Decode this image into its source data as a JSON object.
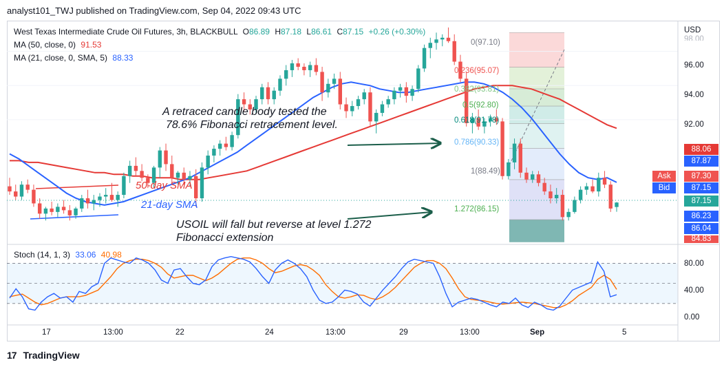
{
  "header": {
    "text": "analyst101_TWJ published on TradingView.com, Sep 04, 2022 09:43 UTC"
  },
  "legend": {
    "symbol": "West Texas Intermediate Crude Oil Futures, 3h, BLACKBULL",
    "o_label": "O",
    "o": "86.89",
    "h_label": "H",
    "h": "87.18",
    "l_label": "L",
    "l": "86.61",
    "c_label": "C",
    "c": "87.15",
    "chg": "+0.26 (+0.30%)",
    "ma50_label": "MA (50, close, 0)",
    "ma50_val": "91.53",
    "ma21_label": "MA (21, close, 0, SMA, 5)",
    "ma21_val": "88.33",
    "stoch_label": "Stoch (14, 1, 3)",
    "stoch_k": "33.06",
    "stoch_d": "40.98"
  },
  "annotations": {
    "a1_line1": "A retraced candle body tested the",
    "a1_line2": "78.6% Fibonacci retracement level.",
    "a2_line1": "USOIL will fall but reverse at level 1.272",
    "a2_line2": "Fibonacci extension",
    "sma50": "50-day SMA",
    "sma21": "21-day SMA"
  },
  "fib_labels": [
    "0(97.10)",
    "0.236(95.07)",
    "0.382(93.81)",
    "0.5(92.80)",
    "0.618(91.78)",
    "0.786(90.33)",
    "1(88.49)",
    "1.272(86.15)"
  ],
  "price_axis": {
    "currency": "USD",
    "ticks": [
      "96.00",
      "94.00",
      "92.00",
      "88.06",
      "87.87",
      "86.23",
      "86.04"
    ],
    "top_cut": "98.00",
    "bot_cut": "84.83"
  },
  "tags": {
    "ask_label": "Ask",
    "ask": "87.30",
    "bid_label": "Bid",
    "bid": "87.15",
    "last": "87.15"
  },
  "stoch_axis": [
    "80.00",
    "40.00",
    "0.00"
  ],
  "time_axis": [
    "17",
    "13:00",
    "22",
    "24",
    "13:00",
    "29",
    "13:00",
    "Sep",
    "5"
  ],
  "footer": {
    "brand": "TradingView"
  },
  "colors": {
    "up": "#26a69a",
    "down": "#ef5350",
    "ma50": "#e53935",
    "ma21": "#2962ff",
    "stoch_k": "#2962ff",
    "stoch_d": "#ff6d00"
  },
  "chart_data": {
    "type": "candlestick",
    "title": "West Texas Intermediate Crude Oil Futures, 3h, BLACKBULL",
    "ylim": [
      84.7,
      97.8
    ],
    "candles": [
      [
        88.1,
        88.6,
        87.6,
        87.8
      ],
      [
        87.8,
        88.2,
        87.3,
        87.5
      ],
      [
        87.5,
        88.4,
        87.3,
        88.2
      ],
      [
        88.2,
        88.5,
        87.7,
        87.9
      ],
      [
        87.9,
        88.2,
        86.9,
        87.1
      ],
      [
        87.1,
        87.4,
        86.2,
        86.5
      ],
      [
        86.5,
        86.9,
        86.1,
        86.8
      ],
      [
        86.8,
        87.2,
        86.4,
        86.6
      ],
      [
        86.6,
        87.1,
        86.3,
        86.9
      ],
      [
        86.9,
        87.3,
        86.5,
        86.7
      ],
      [
        86.7,
        87.0,
        86.1,
        86.4
      ],
      [
        86.4,
        86.9,
        86.2,
        86.8
      ],
      [
        86.8,
        87.6,
        86.6,
        87.4
      ],
      [
        87.4,
        87.9,
        86.8,
        87.1
      ],
      [
        87.1,
        87.6,
        86.7,
        87.3
      ],
      [
        87.3,
        87.7,
        86.9,
        87.5
      ],
      [
        87.5,
        88.0,
        87.1,
        87.6
      ],
      [
        87.6,
        88.3,
        87.2,
        87.3
      ],
      [
        87.3,
        87.8,
        86.9,
        87.6
      ],
      [
        87.6,
        88.9,
        87.4,
        88.7
      ],
      [
        88.7,
        89.6,
        88.3,
        89.3
      ],
      [
        89.3,
        89.8,
        88.7,
        89.0
      ],
      [
        89.0,
        89.4,
        88.4,
        88.6
      ],
      [
        88.6,
        88.8,
        88.0,
        88.3
      ],
      [
        88.3,
        89.3,
        88.0,
        89.2
      ],
      [
        89.2,
        90.4,
        88.6,
        90.2
      ],
      [
        90.2,
        90.6,
        89.0,
        89.4
      ],
      [
        89.4,
        89.9,
        88.3,
        88.6
      ],
      [
        88.6,
        89.0,
        88.2,
        88.9
      ],
      [
        88.9,
        89.2,
        88.2,
        88.5
      ],
      [
        88.5,
        89.0,
        88.1,
        88.7
      ],
      [
        88.7,
        89.1,
        86.9,
        87.4
      ],
      [
        87.4,
        89.5,
        87.2,
        89.2
      ],
      [
        89.2,
        90.2,
        88.8,
        89.9
      ],
      [
        89.9,
        90.5,
        89.5,
        90.3
      ],
      [
        90.3,
        90.8,
        89.9,
        90.6
      ],
      [
        90.6,
        91.0,
        90.2,
        90.4
      ],
      [
        90.4,
        91.3,
        90.2,
        91.1
      ],
      [
        91.1,
        93.5,
        90.9,
        93.2
      ],
      [
        93.2,
        93.6,
        92.5,
        92.9
      ],
      [
        92.9,
        93.2,
        92.3,
        92.6
      ],
      [
        92.6,
        93.4,
        92.4,
        93.2
      ],
      [
        93.2,
        94.1,
        92.9,
        93.9
      ],
      [
        93.9,
        94.2,
        92.9,
        93.2
      ],
      [
        93.2,
        93.9,
        92.9,
        93.7
      ],
      [
        93.7,
        94.6,
        93.4,
        94.4
      ],
      [
        94.4,
        95.2,
        94.0,
        94.9
      ],
      [
        94.9,
        95.5,
        94.5,
        95.3
      ],
      [
        95.3,
        95.6,
        94.9,
        95.1
      ],
      [
        95.1,
        95.3,
        94.6,
        94.9
      ],
      [
        94.9,
        95.4,
        94.5,
        95.2
      ],
      [
        95.2,
        95.6,
        94.6,
        94.8
      ],
      [
        94.8,
        95.1,
        93.1,
        93.6
      ],
      [
        93.6,
        94.4,
        93.3,
        94.1
      ],
      [
        94.1,
        94.7,
        93.8,
        94.4
      ],
      [
        94.4,
        94.8,
        92.6,
        92.9
      ],
      [
        92.9,
        93.3,
        92.1,
        92.5
      ],
      [
        92.5,
        93.1,
        92.2,
        92.8
      ],
      [
        92.8,
        93.4,
        92.6,
        93.2
      ],
      [
        93.2,
        93.8,
        92.9,
        93.6
      ],
      [
        93.6,
        93.9,
        91.6,
        91.9
      ],
      [
        91.9,
        92.6,
        91.2,
        92.4
      ],
      [
        92.4,
        93.1,
        92.2,
        92.9
      ],
      [
        92.9,
        93.4,
        92.7,
        93.2
      ],
      [
        93.2,
        93.9,
        92.9,
        93.7
      ],
      [
        93.7,
        94.1,
        93.3,
        93.9
      ],
      [
        93.9,
        94.2,
        93.0,
        93.4
      ],
      [
        93.4,
        94.0,
        93.1,
        93.8
      ],
      [
        93.8,
        95.2,
        93.6,
        95.0
      ],
      [
        95.0,
        96.4,
        94.8,
        96.2
      ],
      [
        96.2,
        96.8,
        95.6,
        96.5
      ],
      [
        96.5,
        97.1,
        96.1,
        96.7
      ],
      [
        96.7,
        97.0,
        96.3,
        96.8
      ],
      [
        96.8,
        97.4,
        96.5,
        96.6
      ],
      [
        96.6,
        97.0,
        95.2,
        95.4
      ],
      [
        95.4,
        95.8,
        94.2,
        94.4
      ],
      [
        94.4,
        94.8,
        91.6,
        91.8
      ],
      [
        91.8,
        92.4,
        91.2,
        92.1
      ],
      [
        92.1,
        92.6,
        91.4,
        91.6
      ],
      [
        91.6,
        92.1,
        91.2,
        91.9
      ],
      [
        91.9,
        92.3,
        91.6,
        92.1
      ],
      [
        92.1,
        92.6,
        91.7,
        91.9
      ],
      [
        91.9,
        92.1,
        88.5,
        88.7
      ],
      [
        88.7,
        89.7,
        88.5,
        89.5
      ],
      [
        89.5,
        90.9,
        89.1,
        90.6
      ],
      [
        90.6,
        90.9,
        88.6,
        88.9
      ],
      [
        88.9,
        89.2,
        88.3,
        88.5
      ],
      [
        88.5,
        89.0,
        88.3,
        88.8
      ],
      [
        88.8,
        89.0,
        88.1,
        88.3
      ],
      [
        88.3,
        88.6,
        87.6,
        87.8
      ],
      [
        87.8,
        88.2,
        87.1,
        87.4
      ],
      [
        87.4,
        88.0,
        87.1,
        87.6
      ],
      [
        87.6,
        87.9,
        86.1,
        86.3
      ],
      [
        86.3,
        86.8,
        86.1,
        86.6
      ],
      [
        86.6,
        87.5,
        86.5,
        87.3
      ],
      [
        87.3,
        88.1,
        87.1,
        87.9
      ],
      [
        87.9,
        88.3,
        87.6,
        88.1
      ],
      [
        88.1,
        88.5,
        87.7,
        87.8
      ],
      [
        87.8,
        88.9,
        87.5,
        88.6
      ],
      [
        88.6,
        89.0,
        88.0,
        88.2
      ],
      [
        88.2,
        88.4,
        86.6,
        86.8
      ],
      [
        86.89,
        87.18,
        86.61,
        87.15
      ]
    ],
    "ma50": [
      89.6,
      89.6,
      89.5,
      89.5,
      89.4,
      89.3,
      89.2,
      89.1,
      89.0,
      88.9,
      88.9,
      88.8,
      88.8,
      88.7,
      88.7,
      88.6,
      88.6,
      88.6,
      88.5,
      88.5,
      88.5,
      88.6,
      88.7,
      88.8,
      88.9,
      89.0,
      89.2,
      89.4,
      89.6,
      89.8,
      90.0,
      90.2,
      90.4,
      90.6,
      90.8,
      91.0,
      91.2,
      91.4,
      91.6,
      91.8,
      92.0,
      92.2,
      92.4,
      92.6,
      92.8,
      93.0,
      93.2,
      93.4,
      93.6,
      93.8,
      93.9,
      94.0,
      94.0,
      94.0,
      93.9,
      93.8,
      93.6,
      93.4,
      93.2,
      92.9,
      92.6,
      92.3,
      92.0,
      91.7,
      91.5
    ],
    "ma21": [
      90.0,
      89.7,
      89.3,
      88.9,
      88.5,
      88.1,
      87.7,
      87.4,
      87.2,
      87.1,
      87.0,
      87.1,
      87.2,
      87.4,
      87.6,
      87.8,
      88.0,
      88.2,
      88.4,
      88.6,
      88.9,
      89.2,
      89.5,
      89.8,
      90.1,
      90.5,
      90.9,
      91.3,
      91.7,
      92.1,
      92.5,
      92.9,
      93.3,
      93.6,
      93.9,
      94.1,
      94.2,
      94.1,
      94.0,
      93.8,
      93.7,
      93.6,
      93.6,
      93.7,
      93.8,
      93.9,
      94.0,
      94.1,
      94.2,
      94.2,
      94.1,
      93.9,
      93.6,
      93.2,
      92.7,
      92.1,
      91.4,
      90.7,
      90.0,
      89.4,
      88.9,
      88.6,
      88.5,
      88.6,
      88.33
    ],
    "stoch": {
      "ylim": [
        -10,
        100
      ],
      "k": [
        28,
        42,
        30,
        12,
        10,
        22,
        30,
        35,
        28,
        30,
        22,
        38,
        35,
        45,
        50,
        80,
        88,
        85,
        82,
        80,
        88,
        85,
        80,
        70,
        55,
        50,
        70,
        72,
        60,
        50,
        48,
        55,
        75,
        85,
        88,
        90,
        88,
        86,
        82,
        72,
        60,
        50,
        70,
        80,
        85,
        80,
        72,
        60,
        40,
        25,
        20,
        22,
        30,
        40,
        38,
        34,
        22,
        16,
        28,
        40,
        50,
        60,
        72,
        82,
        86,
        84,
        82,
        80,
        60,
        35,
        15,
        22,
        25,
        28,
        26,
        22,
        18,
        15,
        22,
        20,
        28,
        18,
        14,
        22,
        18,
        12,
        10,
        16,
        28,
        40,
        44,
        48,
        52,
        82,
        68,
        30,
        33.06
      ],
      "d": [
        30,
        32,
        34,
        28,
        22,
        18,
        20,
        24,
        28,
        30,
        30,
        30,
        32,
        36,
        40,
        50,
        60,
        72,
        80,
        84,
        86,
        86,
        84,
        80,
        74,
        64,
        58,
        60,
        62,
        62,
        58,
        54,
        58,
        64,
        72,
        80,
        86,
        88,
        88,
        85,
        80,
        72,
        66,
        68,
        72,
        76,
        78,
        76,
        70,
        62,
        48,
        38,
        30,
        28,
        30,
        33,
        32,
        28,
        26,
        30,
        36,
        44,
        54,
        64,
        74,
        80,
        84,
        84,
        80,
        72,
        58,
        42,
        30,
        26,
        25,
        24,
        22,
        20,
        19,
        20,
        21,
        22,
        21,
        20,
        18,
        16,
        14,
        14,
        18,
        24,
        32,
        38,
        44,
        56,
        62,
        56,
        40.98
      ]
    }
  }
}
